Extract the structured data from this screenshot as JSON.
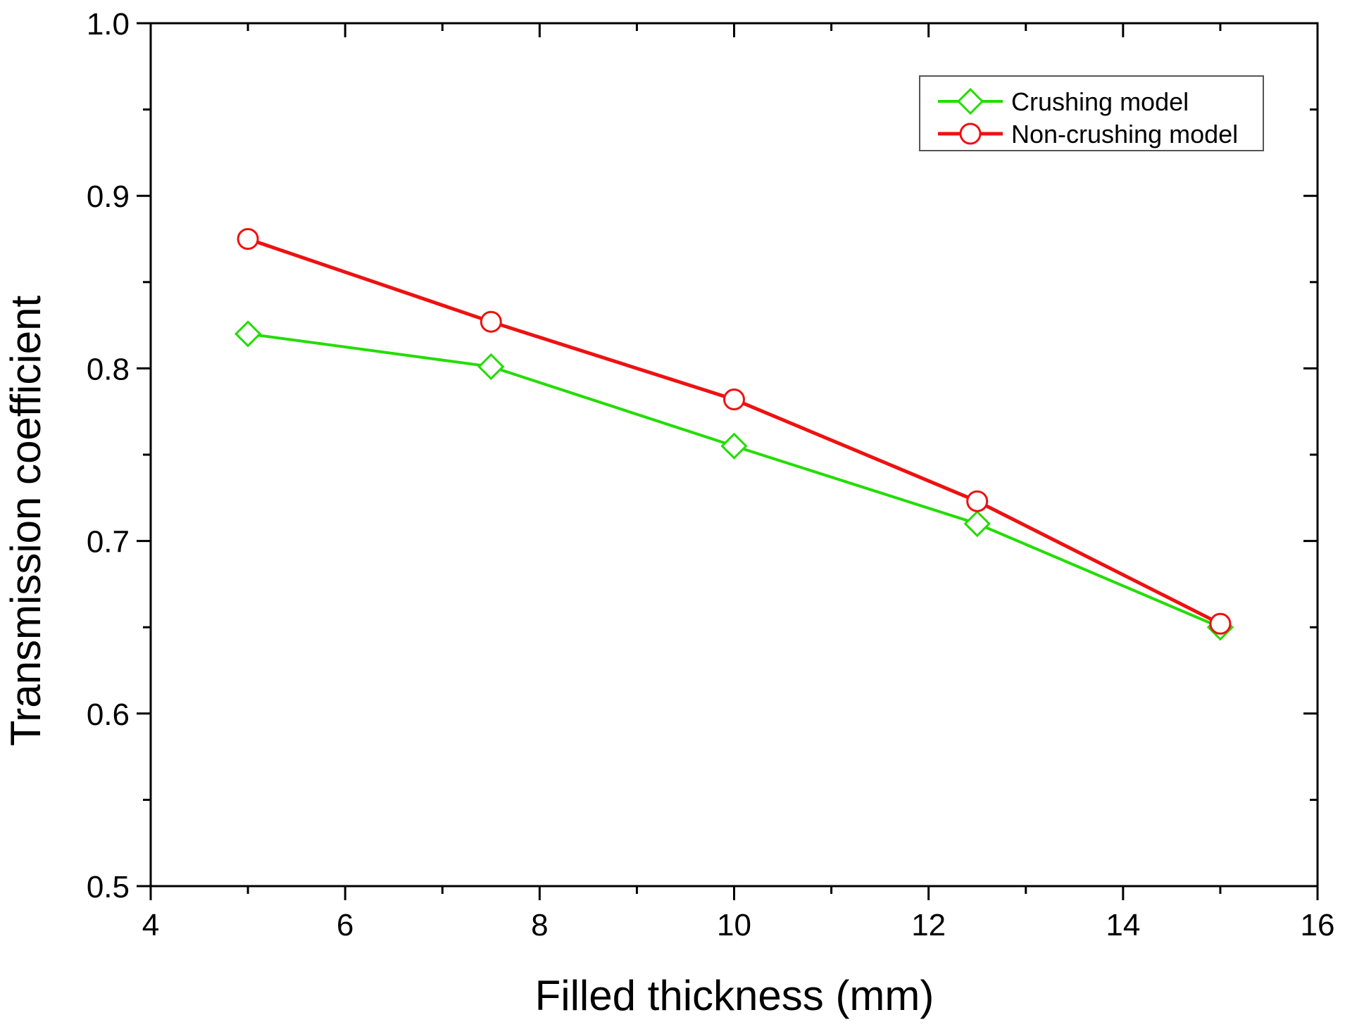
{
  "chart_data": {
    "type": "line",
    "title": "",
    "xlabel": "Filled thickness (mm)",
    "ylabel": "Transmission coefficient",
    "xlim": [
      4,
      16
    ],
    "ylim": [
      0.5,
      1.0
    ],
    "x_ticks": [
      4,
      6,
      8,
      10,
      12,
      14,
      16
    ],
    "x_tick_labels": [
      "4",
      "6",
      "8",
      "10",
      "12",
      "14",
      "16"
    ],
    "y_ticks": [
      0.5,
      0.6,
      0.7,
      0.8,
      0.9,
      1.0
    ],
    "y_tick_labels": [
      "0.5",
      "0.6",
      "0.7",
      "0.8",
      "0.9",
      "1.0"
    ],
    "grid": false,
    "legend_position": "top-right",
    "series": [
      {
        "name": "Crushing model",
        "color": "#22dd00",
        "marker": "diamond",
        "x": [
          5,
          7.5,
          10,
          12.5,
          15
        ],
        "y": [
          0.82,
          0.801,
          0.755,
          0.71,
          0.65
        ]
      },
      {
        "name": "Non-crushing model",
        "color": "#ee1111",
        "marker": "circle",
        "x": [
          5,
          7.5,
          10,
          12.5,
          15
        ],
        "y": [
          0.875,
          0.827,
          0.782,
          0.723,
          0.652
        ]
      }
    ]
  }
}
